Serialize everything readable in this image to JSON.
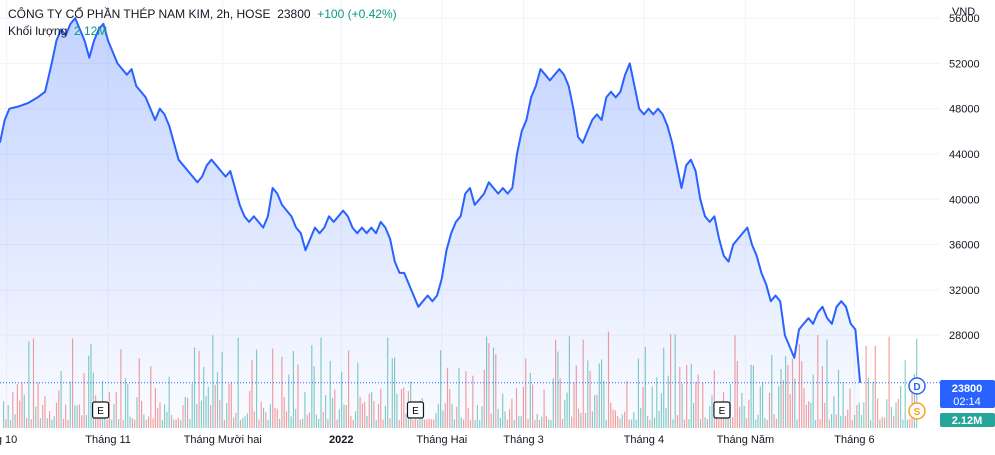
{
  "legend": {
    "symbol": "CÔNG TY CỔ PHẦN THÉP NAM KIM, 2h, HOSE",
    "last": "23800",
    "change": "+100 (+0.42%)",
    "volume_label": "Khối lượng",
    "volume_value": "2.12M"
  },
  "currency": "VND",
  "price_tag": {
    "price": "23800",
    "countdown": "02:14",
    "volume": "2.12M"
  },
  "markers": {
    "earnings_letter": "E",
    "dividend_letter": "D",
    "split_letter": "S"
  },
  "colors": {
    "line": "#2962ff",
    "price_tag": "#2962ff",
    "volume_up": "#26a69a",
    "volume_down": "#ef5350",
    "volume_tag": "#26a69a",
    "dividend": "#2962ff",
    "split": "#f7a21b"
  },
  "chart_data": {
    "type": "area",
    "ylabel": "VND",
    "ylim": [
      19800,
      57600
    ],
    "yticks": [
      28000,
      32000,
      36000,
      40000,
      44000,
      48000,
      52000,
      56000
    ],
    "xlim": [
      0,
      1000
    ],
    "x_ticks": [
      {
        "label": "g 10",
        "x": 7,
        "bold": false
      },
      {
        "label": "Tháng 11",
        "x": 115,
        "bold": false
      },
      {
        "label": "Tháng Mười hai",
        "x": 237,
        "bold": false
      },
      {
        "label": "2022",
        "x": 363,
        "bold": true
      },
      {
        "label": "Tháng Hai",
        "x": 470,
        "bold": false
      },
      {
        "label": "Tháng 3",
        "x": 557,
        "bold": false
      },
      {
        "label": "Tháng 4",
        "x": 685,
        "bold": false
      },
      {
        "label": "Tháng Năm",
        "x": 793,
        "bold": false
      },
      {
        "label": "Tháng 6",
        "x": 909,
        "bold": false
      }
    ],
    "earnings_x": [
      107,
      442,
      768
    ],
    "grid": true,
    "series": [
      {
        "values": [
          [
            0,
            45000
          ],
          [
            5,
            47000
          ],
          [
            10,
            48000
          ],
          [
            20,
            48200
          ],
          [
            30,
            48500
          ],
          [
            40,
            49000
          ],
          [
            48,
            49500
          ],
          [
            55,
            52000
          ],
          [
            60,
            54000
          ],
          [
            65,
            55000
          ],
          [
            70,
            54500
          ],
          [
            75,
            55500
          ],
          [
            80,
            56000
          ],
          [
            85,
            55000
          ],
          [
            90,
            54000
          ],
          [
            95,
            52500
          ],
          [
            100,
            54000
          ],
          [
            105,
            55000
          ],
          [
            110,
            55500
          ],
          [
            115,
            54000
          ],
          [
            120,
            53000
          ],
          [
            125,
            52000
          ],
          [
            130,
            51500
          ],
          [
            135,
            51000
          ],
          [
            140,
            51500
          ],
          [
            145,
            50000
          ],
          [
            150,
            49500
          ],
          [
            155,
            49000
          ],
          [
            160,
            48000
          ],
          [
            165,
            47000
          ],
          [
            170,
            48000
          ],
          [
            175,
            47500
          ],
          [
            180,
            46500
          ],
          [
            185,
            45000
          ],
          [
            190,
            43500
          ],
          [
            195,
            43000
          ],
          [
            200,
            42500
          ],
          [
            205,
            42000
          ],
          [
            210,
            41500
          ],
          [
            215,
            42000
          ],
          [
            220,
            43000
          ],
          [
            225,
            43500
          ],
          [
            230,
            43000
          ],
          [
            235,
            42500
          ],
          [
            240,
            42000
          ],
          [
            245,
            42500
          ],
          [
            250,
            41000
          ],
          [
            255,
            39500
          ],
          [
            260,
            38500
          ],
          [
            265,
            38000
          ],
          [
            270,
            38500
          ],
          [
            275,
            38000
          ],
          [
            280,
            37500
          ],
          [
            285,
            38500
          ],
          [
            290,
            41000
          ],
          [
            295,
            40500
          ],
          [
            300,
            39500
          ],
          [
            305,
            39000
          ],
          [
            310,
            38500
          ],
          [
            315,
            37500
          ],
          [
            320,
            37000
          ],
          [
            325,
            35500
          ],
          [
            330,
            36500
          ],
          [
            335,
            37500
          ],
          [
            340,
            37000
          ],
          [
            345,
            37500
          ],
          [
            350,
            38500
          ],
          [
            355,
            38000
          ],
          [
            360,
            38500
          ],
          [
            365,
            39000
          ],
          [
            370,
            38500
          ],
          [
            375,
            37500
          ],
          [
            380,
            37000
          ],
          [
            385,
            37500
          ],
          [
            390,
            37000
          ],
          [
            395,
            37500
          ],
          [
            400,
            37000
          ],
          [
            405,
            38000
          ],
          [
            410,
            37500
          ],
          [
            415,
            36500
          ],
          [
            420,
            34500
          ],
          [
            425,
            33500
          ],
          [
            430,
            33500
          ],
          [
            435,
            32500
          ],
          [
            440,
            31500
          ],
          [
            445,
            30500
          ],
          [
            450,
            31000
          ],
          [
            455,
            31500
          ],
          [
            460,
            31000
          ],
          [
            465,
            31500
          ],
          [
            470,
            33000
          ],
          [
            475,
            35500
          ],
          [
            480,
            37000
          ],
          [
            485,
            38000
          ],
          [
            490,
            38500
          ],
          [
            495,
            40500
          ],
          [
            500,
            41000
          ],
          [
            505,
            39500
          ],
          [
            510,
            40000
          ],
          [
            515,
            40500
          ],
          [
            520,
            41500
          ],
          [
            525,
            41000
          ],
          [
            530,
            40500
          ],
          [
            535,
            41000
          ],
          [
            540,
            40500
          ],
          [
            545,
            41000
          ],
          [
            550,
            44000
          ],
          [
            555,
            46000
          ],
          [
            560,
            47000
          ],
          [
            565,
            49000
          ],
          [
            570,
            50000
          ],
          [
            575,
            51500
          ],
          [
            580,
            51000
          ],
          [
            585,
            50500
          ],
          [
            590,
            51000
          ],
          [
            595,
            51500
          ],
          [
            600,
            51000
          ],
          [
            605,
            50000
          ],
          [
            610,
            48000
          ],
          [
            615,
            45500
          ],
          [
            620,
            45000
          ],
          [
            625,
            46000
          ],
          [
            630,
            47000
          ],
          [
            635,
            47500
          ],
          [
            640,
            47000
          ],
          [
            645,
            49000
          ],
          [
            650,
            49500
          ],
          [
            655,
            49000
          ],
          [
            660,
            49500
          ],
          [
            665,
            51000
          ],
          [
            670,
            52000
          ],
          [
            675,
            50000
          ],
          [
            680,
            48000
          ],
          [
            685,
            47500
          ],
          [
            690,
            48000
          ],
          [
            695,
            47500
          ],
          [
            700,
            48000
          ],
          [
            705,
            47500
          ],
          [
            710,
            46500
          ],
          [
            715,
            45000
          ],
          [
            720,
            43000
          ],
          [
            725,
            41000
          ],
          [
            730,
            43000
          ],
          [
            735,
            43500
          ],
          [
            740,
            42500
          ],
          [
            745,
            40000
          ],
          [
            750,
            38500
          ],
          [
            755,
            38000
          ],
          [
            760,
            38500
          ],
          [
            765,
            36500
          ],
          [
            770,
            35000
          ],
          [
            775,
            34500
          ],
          [
            780,
            36000
          ],
          [
            785,
            36500
          ],
          [
            790,
            37000
          ],
          [
            795,
            37500
          ],
          [
            800,
            36000
          ],
          [
            805,
            35000
          ],
          [
            810,
            33500
          ],
          [
            815,
            32500
          ],
          [
            820,
            31000
          ],
          [
            825,
            31500
          ],
          [
            830,
            31000
          ],
          [
            835,
            28000
          ],
          [
            840,
            27000
          ],
          [
            845,
            26000
          ],
          [
            850,
            28500
          ],
          [
            855,
            29000
          ],
          [
            860,
            29500
          ],
          [
            865,
            29000
          ],
          [
            870,
            30000
          ],
          [
            875,
            30500
          ],
          [
            880,
            29500
          ],
          [
            885,
            29000
          ],
          [
            890,
            30500
          ],
          [
            895,
            31000
          ],
          [
            900,
            30500
          ],
          [
            905,
            29000
          ],
          [
            910,
            28500
          ],
          [
            915,
            23800
          ]
        ]
      }
    ],
    "volume_series": {
      "name": "Khối lượng",
      "last": "2.12M"
    }
  }
}
